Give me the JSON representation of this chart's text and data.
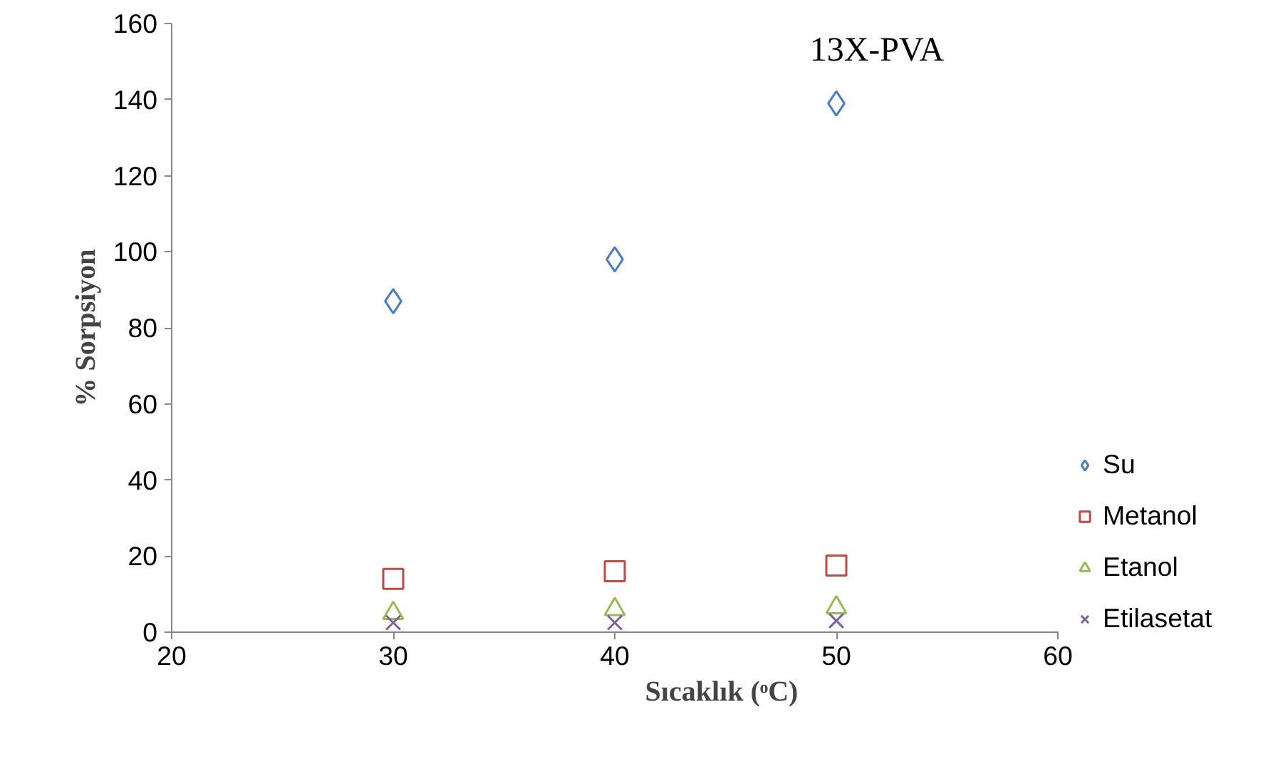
{
  "chart_data": {
    "type": "scatter",
    "title": "13X-PVA",
    "xlabel": "Sıcaklık (ᵒC)",
    "ylabel": "% Sorpsiyon",
    "x": [
      30,
      40,
      50
    ],
    "xlim": [
      20,
      60
    ],
    "xticks": [
      20,
      30,
      40,
      50,
      60
    ],
    "ylim": [
      0,
      160
    ],
    "yticks": [
      0,
      20,
      40,
      60,
      80,
      100,
      120,
      140,
      160
    ],
    "grid": false,
    "legend": "right",
    "series": [
      {
        "name": "Su",
        "color": "#4a7ebb",
        "marker": "diamond",
        "values": [
          87,
          98,
          139
        ]
      },
      {
        "name": "Metanol",
        "color": "#be4b48",
        "marker": "square",
        "values": [
          14,
          16,
          17.5
        ]
      },
      {
        "name": "Etanol",
        "color": "#98b954",
        "marker": "triangle",
        "values": [
          5,
          6,
          6.5
        ]
      },
      {
        "name": "Etilasetat",
        "color": "#7d60a0",
        "marker": "cross",
        "values": [
          2.5,
          2.5,
          3
        ]
      }
    ]
  }
}
